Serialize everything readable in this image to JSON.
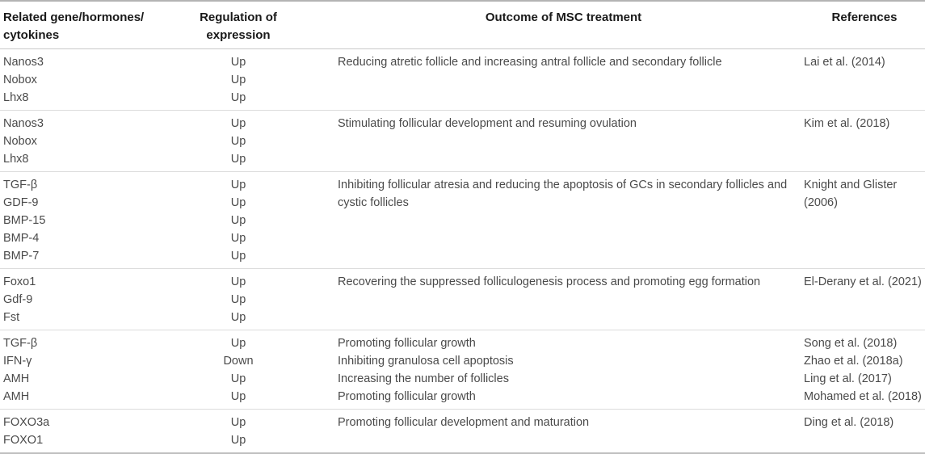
{
  "table": {
    "columns": [
      {
        "id": "genes",
        "label": "Related gene/hormones/\ncytokines"
      },
      {
        "id": "regulation",
        "label": "Regulation of\nexpression"
      },
      {
        "id": "outcome",
        "label": "Outcome of MSC treatment"
      },
      {
        "id": "references",
        "label": "References"
      }
    ],
    "rows": [
      {
        "genes": [
          "Nanos3",
          "Nobox",
          "Lhx8"
        ],
        "regulation": [
          "Up",
          "Up",
          "Up"
        ],
        "outcomes": [
          "Reducing atretic follicle and increasing antral follicle and secondary follicle"
        ],
        "references": [
          "Lai et al. (2014)"
        ]
      },
      {
        "genes": [
          "Nanos3",
          "Nobox",
          "Lhx8"
        ],
        "regulation": [
          "Up",
          "Up",
          "Up"
        ],
        "outcomes": [
          "Stimulating follicular development and resuming ovulation"
        ],
        "references": [
          "Kim et al. (2018)"
        ]
      },
      {
        "genes": [
          "TGF-β",
          "GDF-9",
          "BMP-15",
          "BMP-4",
          "BMP-7"
        ],
        "regulation": [
          "Up",
          "Up",
          "Up",
          "Up",
          "Up"
        ],
        "outcomes": [
          "Inhibiting follicular atresia and reducing the apoptosis of GCs in secondary follicles and cystic follicles"
        ],
        "references": [
          "Knight and Glister (2006)"
        ]
      },
      {
        "genes": [
          "Foxo1",
          "Gdf-9",
          "Fst"
        ],
        "regulation": [
          "Up",
          "Up",
          "Up"
        ],
        "outcomes": [
          "Recovering the suppressed folliculogenesis process and promoting egg formation"
        ],
        "references": [
          "El-Derany et al. (2021)"
        ]
      },
      {
        "genes": [
          "TGF-β",
          "IFN-γ",
          "AMH",
          "AMH"
        ],
        "regulation": [
          "Up",
          "Down",
          "Up",
          "Up"
        ],
        "outcomes": [
          "Promoting follicular growth",
          "Inhibiting granulosa cell apoptosis",
          "Increasing the number of follicles",
          "Promoting follicular growth"
        ],
        "references": [
          "Song et al. (2018)",
          "Zhao et al. (2018a)",
          "Ling et al. (2017)",
          "Mohamed et al. (2018)"
        ]
      },
      {
        "genes": [
          "FOXO3a",
          "FOXO1"
        ],
        "regulation": [
          "Up",
          "Up"
        ],
        "outcomes": [
          "Promoting follicular development and maturation"
        ],
        "references": [
          "Ding et al. (2018)"
        ]
      }
    ]
  }
}
